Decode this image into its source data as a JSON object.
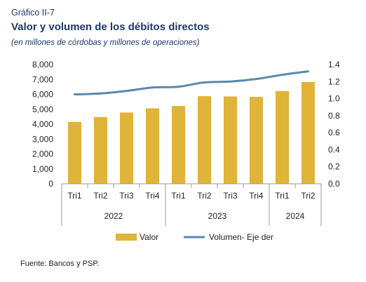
{
  "header": {
    "figure_label": "Gráfico II-7",
    "title": "Valor y volumen de los débitos directos",
    "subtitle": "(en millones de córdobas y millones de operaciones)"
  },
  "footer": {
    "source": "Fuente: Bancos y PSP."
  },
  "colors": {
    "bar": "#E0B339",
    "line": "#5B87AE",
    "axis": "#9a9a9a",
    "title": "#1b3a6b"
  },
  "chart_data": {
    "type": "bar",
    "categories": [
      "Tri1",
      "Tri2",
      "Tri3",
      "Tri4",
      "Tri1",
      "Tri2",
      "Tri3",
      "Tri4",
      "Tri1",
      "Tri2"
    ],
    "groups": [
      {
        "label": "2022",
        "count": 4
      },
      {
        "label": "2023",
        "count": 4
      },
      {
        "label": "2024",
        "count": 2
      }
    ],
    "series": [
      {
        "name": "Valor",
        "type": "bar",
        "axis": "left",
        "values": [
          4150,
          4480,
          4780,
          5060,
          5220,
          5880,
          5860,
          5830,
          6220,
          6830
        ]
      },
      {
        "name": "Volumen- Eje der",
        "type": "line",
        "axis": "right",
        "values": [
          1.05,
          1.06,
          1.09,
          1.13,
          1.14,
          1.19,
          1.2,
          1.23,
          1.28,
          1.32
        ]
      }
    ],
    "ylim": [
      0,
      8000
    ],
    "yticks": [
      "8,000",
      "7,000",
      "6,000",
      "5,000",
      "4,000",
      "3,000",
      "2,000",
      "1,000",
      "0"
    ],
    "y2lim": [
      0,
      1.4
    ],
    "y2ticks": [
      "1.4",
      "1.2",
      "1.0",
      "0.8",
      "0.6",
      "0.4",
      "0.2",
      "0.0"
    ],
    "grid": false,
    "legend_position": "bottom"
  }
}
